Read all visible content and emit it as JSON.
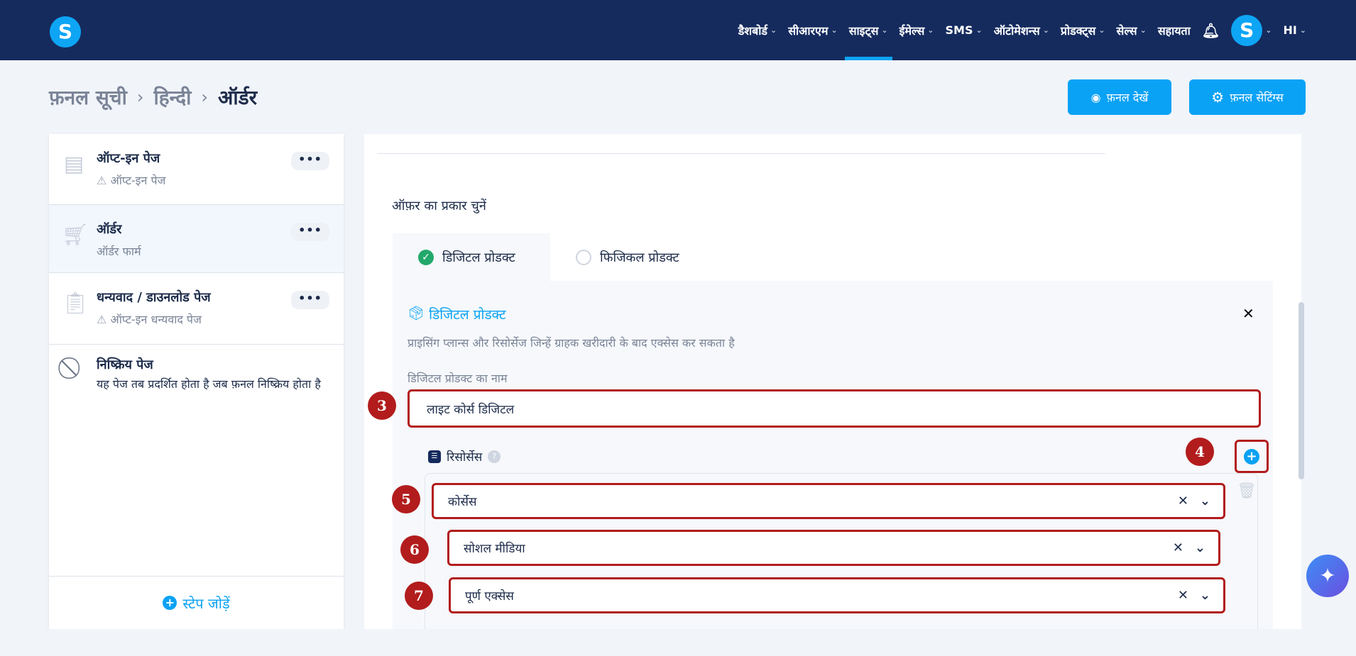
{
  "nav": {
    "logo": "S",
    "items": [
      {
        "label": "डैशबोर्ड"
      },
      {
        "label": "सीआरएम"
      },
      {
        "label": "साइट्स",
        "active": true
      },
      {
        "label": "ईमेल्स"
      },
      {
        "label": "SMS"
      },
      {
        "label": "ऑटोमेशन्स"
      },
      {
        "label": "प्रोडक्ट्स"
      },
      {
        "label": "सेल्स"
      }
    ],
    "help": "सहायता",
    "avatar": "S",
    "lang": "HI",
    "chevron": "⌄"
  },
  "breadcrumb": [
    "फ़नल सूची",
    "हिन्दी",
    "ऑर्डर"
  ],
  "actions": {
    "view": "फ़नल देखें",
    "settings": "फ़नल सेटिंग्स"
  },
  "steps": [
    {
      "title": "ऑप्ट-इन पेज",
      "subtitle": "ऑप्ट-इन पेज",
      "warning": true,
      "icon": "form-icon"
    },
    {
      "title": "ऑर्डर",
      "subtitle": "ऑर्डर फार्म",
      "warning": false,
      "active": true,
      "icon": "cart-icon"
    },
    {
      "title": "धन्यवाद / डाउनलोड पेज",
      "subtitle": "ऑप्ट-इन धन्यवाद पेज",
      "warning": true,
      "icon": "clipboard-check-icon"
    },
    {
      "title": "निष्क्रिय पेज",
      "subtitle": "यह पेज तब प्रदर्शित होता है जब फ़नल निष्क्रिय होता है",
      "icon": "ban-icon"
    }
  ],
  "add_step": "स्टेप जोड़ें",
  "main": {
    "offer_label": "ऑफ़र का प्रकार चुनें",
    "tabs": [
      {
        "label": "डिजिटल प्रोडक्ट",
        "selected": true
      },
      {
        "label": "फिजिकल प्रोडक्ट",
        "selected": false
      }
    ],
    "section_title": "डिजिटल प्रोडक्ट",
    "section_desc": "प्राइसिंग प्लान्स और रिसोर्सेज जिन्हें ग्राहक खरीदारी के बाद एक्सेस कर सकता है",
    "name_label": "डिजिटल प्रोडक्ट का नाम",
    "name_value": "लाइट कोर्स डिजिटल",
    "resources_label": "रिसोर्सेस",
    "resources": [
      "कोर्सेस",
      "सोशल मीडिया",
      "पूर्ण एक्सेस"
    ]
  },
  "annotations": [
    "3",
    "4",
    "5",
    "6",
    "7"
  ],
  "colors": {
    "nav": "#152b5e",
    "accent": "#0aa2f5",
    "annotation": "#b21c1c",
    "success": "#22a86b"
  }
}
